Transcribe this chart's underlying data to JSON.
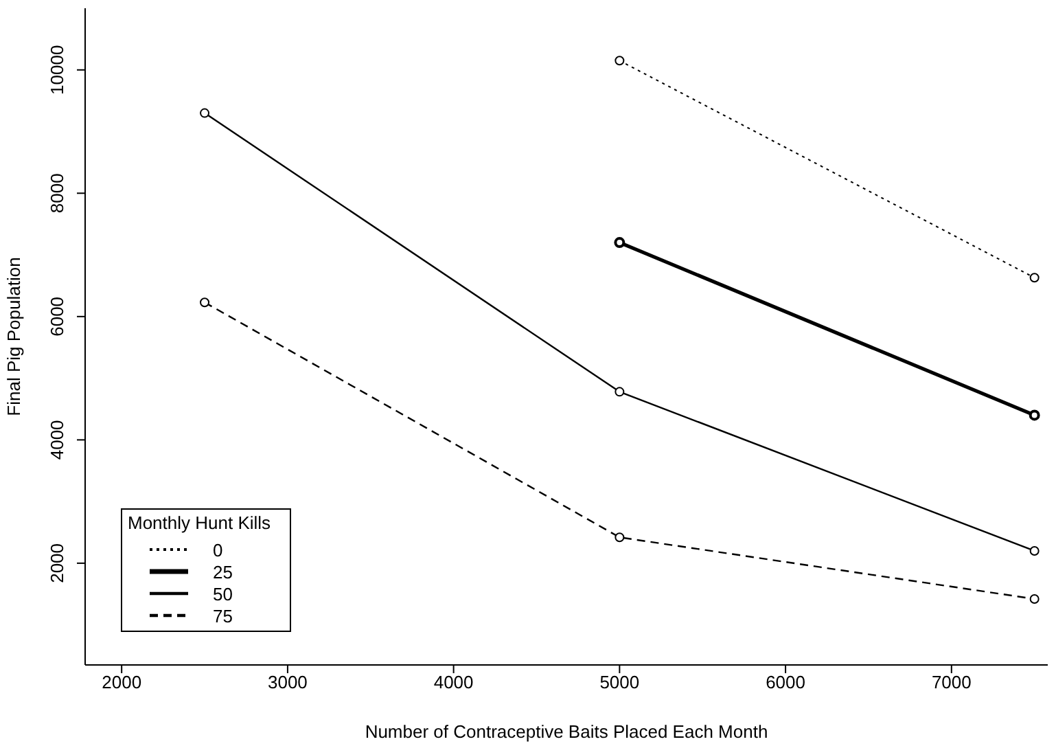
{
  "chart_data": {
    "type": "line",
    "xlabel": "Number of Contraceptive Baits Placed Each Month",
    "ylabel": "Final Pig Population",
    "legend_title": "Monthly Hunt Kills",
    "x": [
      2500,
      5000,
      7500
    ],
    "series": [
      {
        "name": "0",
        "color": "#000000",
        "line_style": "dotted",
        "values": [
          null,
          10150,
          6630
        ]
      },
      {
        "name": "25",
        "color": "#000000",
        "line_style": "solid",
        "values": [
          null,
          7200,
          4400
        ]
      },
      {
        "name": "50",
        "color": "#000000",
        "line_style": "solid",
        "values": [
          9300,
          4780,
          2200
        ]
      },
      {
        "name": "75",
        "color": "#000000",
        "line_style": "dashed",
        "values": [
          6230,
          2420,
          1420
        ]
      }
    ],
    "xlim": [
      1780,
      7580
    ],
    "xticks": [
      2000,
      3000,
      4000,
      5000,
      6000,
      7000
    ],
    "ylim": [
      350,
      11000
    ],
    "yticks": [
      2000,
      4000,
      6000,
      8000,
      10000
    ],
    "grid": false,
    "legend": "bottom left",
    "marker": "circle"
  }
}
